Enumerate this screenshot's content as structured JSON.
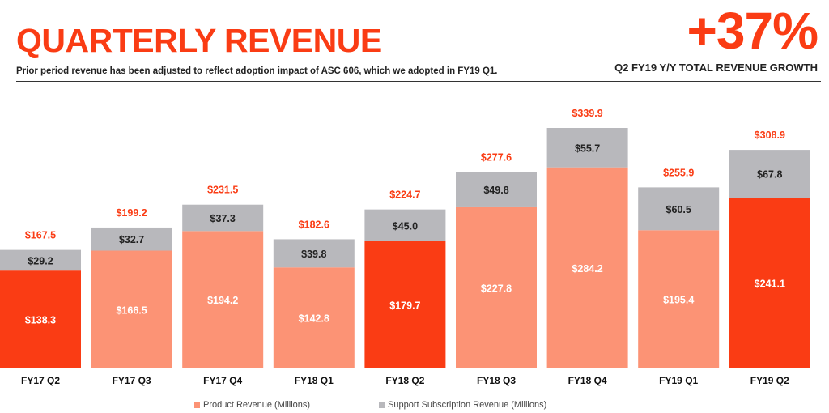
{
  "header": {
    "title": "QUARTERLY REVENUE",
    "subtitle": "Prior period revenue has been adjusted to reflect adoption impact of ASC 606, which we adopted in FY19 Q1.",
    "big_stat": "+37%",
    "big_stat_label": "Q2 FY19 Y/Y TOTAL REVENUE GROWTH"
  },
  "colors": {
    "accent": "#fa3c14",
    "product_highlight": "#fa3c14",
    "product": "#fc9375",
    "support": "#b8b8bc",
    "total_label": "#fa3c14"
  },
  "chart_data": {
    "type": "bar",
    "stacked": true,
    "categories": [
      "FY17 Q2",
      "FY17 Q3",
      "FY17 Q4",
      "FY18 Q1",
      "FY18 Q2",
      "FY18 Q3",
      "FY18 Q4",
      "FY19 Q1",
      "FY19 Q2"
    ],
    "series": [
      {
        "name": "Product Revenue (Millions)",
        "values": [
          138.3,
          166.5,
          194.2,
          142.8,
          179.7,
          227.8,
          284.2,
          195.4,
          241.1
        ],
        "labels": [
          "$138.3",
          "$166.5",
          "$194.2",
          "$142.8",
          "$179.7",
          "$227.8",
          "$284.2",
          "$195.4",
          "$241.1"
        ]
      },
      {
        "name": "Support Subscription Revenue (Millions)",
        "values": [
          29.2,
          32.7,
          37.3,
          39.8,
          45.0,
          49.8,
          55.7,
          60.5,
          67.8
        ],
        "labels": [
          "$29.2",
          "$32.7",
          "$37.3",
          "$39.8",
          "$45.0",
          "$49.8",
          "$55.7",
          "$60.5",
          "$67.8"
        ]
      }
    ],
    "totals": [
      167.5,
      199.2,
      231.5,
      182.6,
      224.7,
      277.6,
      339.9,
      255.9,
      308.9
    ],
    "total_labels": [
      "$167.5",
      "$199.2",
      "$231.5",
      "$182.6",
      "$224.7",
      "$277.6",
      "$339.9",
      "$255.9",
      "$308.9"
    ],
    "highlighted": [
      "FY17 Q2",
      "FY18 Q2",
      "FY19 Q2"
    ],
    "ylim": [
      0,
      339.9
    ],
    "grid": false,
    "legend_position": "bottom"
  }
}
